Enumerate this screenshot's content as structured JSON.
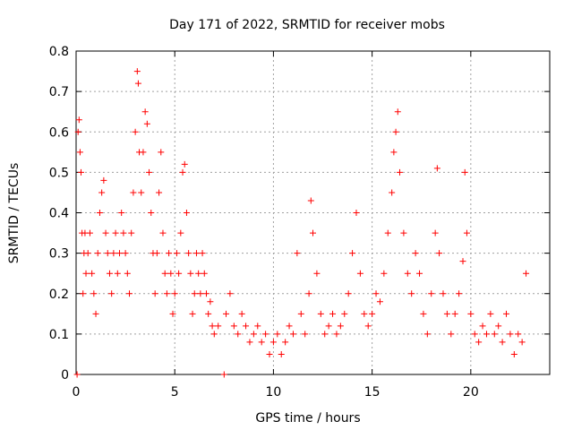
{
  "chart_data": {
    "type": "scatter",
    "title": "Day 171 of 2022, SRMTID for receiver mobs",
    "xlabel": "GPS time / hours",
    "ylabel": "SRMTID / TECUs",
    "xlim": [
      0,
      24
    ],
    "ylim": [
      0,
      0.8
    ],
    "xticks": [
      0,
      5,
      10,
      15,
      20
    ],
    "yticks": [
      0,
      0.1,
      0.2,
      0.3,
      0.4,
      0.5,
      0.6,
      0.7,
      0.8
    ],
    "grid": true,
    "marker": "+",
    "color": "#ff0000",
    "series": [
      {
        "name": "SRMTID",
        "points": [
          [
            0.05,
            0.0
          ],
          [
            0.1,
            0.6
          ],
          [
            0.15,
            0.63
          ],
          [
            0.2,
            0.55
          ],
          [
            0.25,
            0.5
          ],
          [
            0.3,
            0.35
          ],
          [
            0.35,
            0.2
          ],
          [
            0.4,
            0.3
          ],
          [
            0.45,
            0.35
          ],
          [
            0.5,
            0.25
          ],
          [
            0.6,
            0.3
          ],
          [
            0.7,
            0.35
          ],
          [
            0.8,
            0.25
          ],
          [
            0.9,
            0.2
          ],
          [
            1.0,
            0.15
          ],
          [
            1.1,
            0.3
          ],
          [
            1.2,
            0.4
          ],
          [
            1.3,
            0.45
          ],
          [
            1.4,
            0.48
          ],
          [
            1.5,
            0.35
          ],
          [
            1.6,
            0.3
          ],
          [
            1.7,
            0.25
          ],
          [
            1.8,
            0.2
          ],
          [
            1.9,
            0.3
          ],
          [
            2.0,
            0.35
          ],
          [
            2.1,
            0.25
          ],
          [
            2.2,
            0.3
          ],
          [
            2.3,
            0.4
          ],
          [
            2.4,
            0.35
          ],
          [
            2.5,
            0.3
          ],
          [
            2.6,
            0.25
          ],
          [
            2.7,
            0.2
          ],
          [
            2.8,
            0.35
          ],
          [
            2.9,
            0.45
          ],
          [
            3.0,
            0.6
          ],
          [
            3.1,
            0.75
          ],
          [
            3.15,
            0.72
          ],
          [
            3.2,
            0.55
          ],
          [
            3.3,
            0.45
          ],
          [
            3.4,
            0.55
          ],
          [
            3.5,
            0.65
          ],
          [
            3.6,
            0.62
          ],
          [
            3.7,
            0.5
          ],
          [
            3.8,
            0.4
          ],
          [
            3.9,
            0.3
          ],
          [
            4.0,
            0.2
          ],
          [
            4.1,
            0.3
          ],
          [
            4.2,
            0.45
          ],
          [
            4.3,
            0.55
          ],
          [
            4.4,
            0.35
          ],
          [
            4.5,
            0.25
          ],
          [
            4.6,
            0.2
          ],
          [
            4.7,
            0.3
          ],
          [
            4.8,
            0.25
          ],
          [
            4.9,
            0.15
          ],
          [
            5.0,
            0.2
          ],
          [
            5.1,
            0.3
          ],
          [
            5.2,
            0.25
          ],
          [
            5.3,
            0.35
          ],
          [
            5.4,
            0.5
          ],
          [
            5.5,
            0.52
          ],
          [
            5.6,
            0.4
          ],
          [
            5.7,
            0.3
          ],
          [
            5.8,
            0.25
          ],
          [
            5.9,
            0.15
          ],
          [
            6.0,
            0.2
          ],
          [
            6.1,
            0.3
          ],
          [
            6.2,
            0.25
          ],
          [
            6.3,
            0.2
          ],
          [
            6.4,
            0.3
          ],
          [
            6.5,
            0.25
          ],
          [
            6.6,
            0.2
          ],
          [
            6.7,
            0.15
          ],
          [
            6.8,
            0.18
          ],
          [
            6.9,
            0.12
          ],
          [
            7.0,
            0.1
          ],
          [
            7.2,
            0.12
          ],
          [
            7.5,
            0.0
          ],
          [
            7.6,
            0.15
          ],
          [
            7.8,
            0.2
          ],
          [
            8.0,
            0.12
          ],
          [
            8.2,
            0.1
          ],
          [
            8.4,
            0.15
          ],
          [
            8.6,
            0.12
          ],
          [
            8.8,
            0.08
          ],
          [
            9.0,
            0.1
          ],
          [
            9.2,
            0.12
          ],
          [
            9.4,
            0.08
          ],
          [
            9.6,
            0.1
          ],
          [
            9.8,
            0.05
          ],
          [
            10.0,
            0.08
          ],
          [
            10.2,
            0.1
          ],
          [
            10.4,
            0.05
          ],
          [
            10.6,
            0.08
          ],
          [
            10.8,
            0.12
          ],
          [
            11.0,
            0.1
          ],
          [
            11.2,
            0.3
          ],
          [
            11.4,
            0.15
          ],
          [
            11.6,
            0.1
          ],
          [
            11.8,
            0.2
          ],
          [
            11.9,
            0.43
          ],
          [
            12.0,
            0.35
          ],
          [
            12.2,
            0.25
          ],
          [
            12.4,
            0.15
          ],
          [
            12.6,
            0.1
          ],
          [
            12.8,
            0.12
          ],
          [
            13.0,
            0.15
          ],
          [
            13.2,
            0.1
          ],
          [
            13.4,
            0.12
          ],
          [
            13.6,
            0.15
          ],
          [
            13.8,
            0.2
          ],
          [
            14.0,
            0.3
          ],
          [
            14.2,
            0.4
          ],
          [
            14.4,
            0.25
          ],
          [
            14.6,
            0.15
          ],
          [
            14.8,
            0.12
          ],
          [
            15.0,
            0.15
          ],
          [
            15.2,
            0.2
          ],
          [
            15.4,
            0.18
          ],
          [
            15.6,
            0.25
          ],
          [
            15.8,
            0.35
          ],
          [
            16.0,
            0.45
          ],
          [
            16.1,
            0.55
          ],
          [
            16.2,
            0.6
          ],
          [
            16.3,
            0.65
          ],
          [
            16.4,
            0.5
          ],
          [
            16.6,
            0.35
          ],
          [
            16.8,
            0.25
          ],
          [
            17.0,
            0.2
          ],
          [
            17.2,
            0.3
          ],
          [
            17.4,
            0.25
          ],
          [
            17.6,
            0.15
          ],
          [
            17.8,
            0.1
          ],
          [
            18.0,
            0.2
          ],
          [
            18.2,
            0.35
          ],
          [
            18.3,
            0.51
          ],
          [
            18.4,
            0.3
          ],
          [
            18.6,
            0.2
          ],
          [
            18.8,
            0.15
          ],
          [
            19.0,
            0.1
          ],
          [
            19.2,
            0.15
          ],
          [
            19.4,
            0.2
          ],
          [
            19.6,
            0.28
          ],
          [
            19.7,
            0.5
          ],
          [
            19.8,
            0.35
          ],
          [
            20.0,
            0.15
          ],
          [
            20.2,
            0.1
          ],
          [
            20.4,
            0.08
          ],
          [
            20.6,
            0.12
          ],
          [
            20.8,
            0.1
          ],
          [
            21.0,
            0.15
          ],
          [
            21.2,
            0.1
          ],
          [
            21.4,
            0.12
          ],
          [
            21.6,
            0.08
          ],
          [
            21.8,
            0.15
          ],
          [
            22.0,
            0.1
          ],
          [
            22.2,
            0.05
          ],
          [
            22.4,
            0.1
          ],
          [
            22.6,
            0.08
          ],
          [
            22.8,
            0.25
          ]
        ]
      }
    ]
  }
}
